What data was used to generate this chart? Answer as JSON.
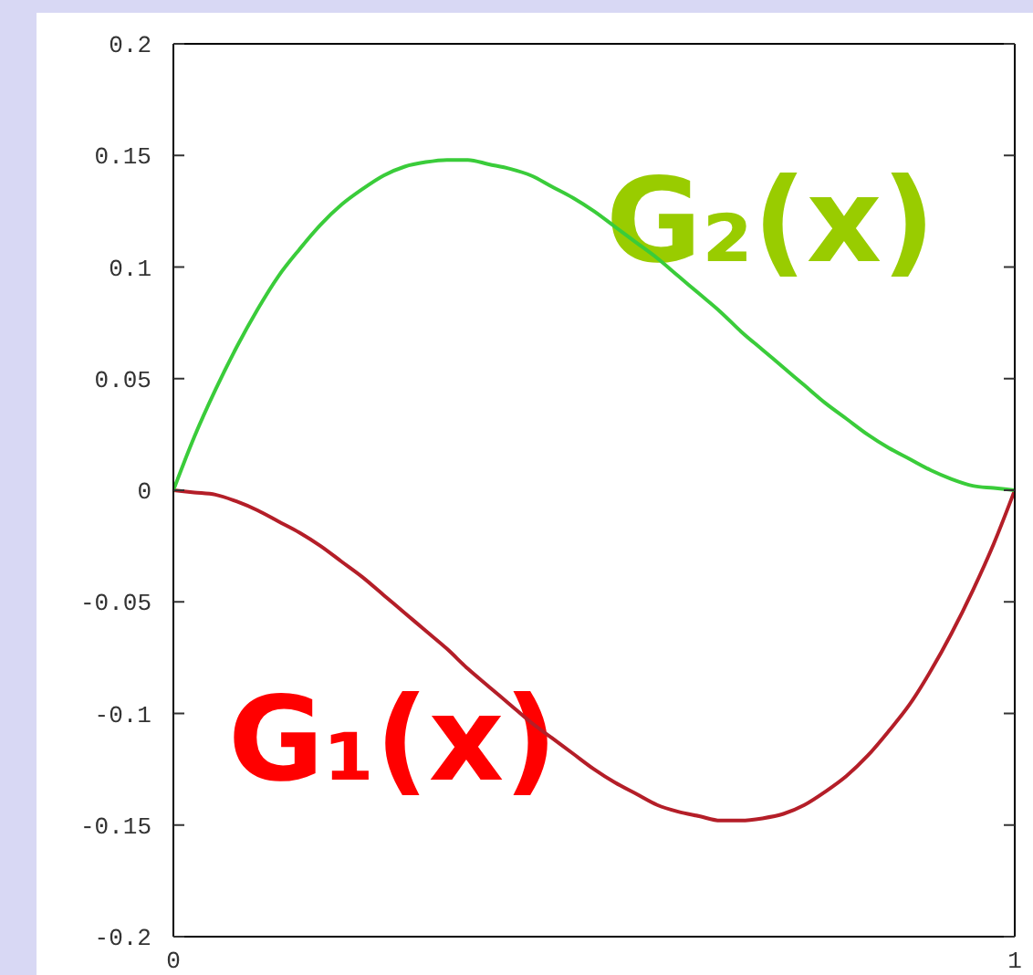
{
  "chart_data": {
    "type": "line",
    "x": [
      0,
      0.025,
      0.05,
      0.075,
      0.1,
      0.125,
      0.15,
      0.175,
      0.2,
      0.225,
      0.25,
      0.275,
      0.3,
      0.325,
      0.35,
      0.375,
      0.4,
      0.425,
      0.45,
      0.475,
      0.5,
      0.525,
      0.55,
      0.575,
      0.6,
      0.625,
      0.65,
      0.675,
      0.7,
      0.725,
      0.75,
      0.775,
      0.8,
      0.825,
      0.85,
      0.875,
      0.9,
      0.925,
      0.95,
      0.975,
      1
    ],
    "series": [
      {
        "name": "G₁(x)",
        "color": "#b41e28",
        "values": [
          0,
          -0.001,
          -0.002,
          -0.005,
          -0.009,
          -0.014,
          -0.019,
          -0.025,
          -0.032,
          -0.039,
          -0.047,
          -0.055,
          -0.063,
          -0.071,
          -0.08,
          -0.088,
          -0.096,
          -0.104,
          -0.111,
          -0.118,
          -0.125,
          -0.131,
          -0.136,
          -0.141,
          -0.144,
          -0.146,
          -0.148,
          -0.148,
          -0.147,
          -0.145,
          -0.141,
          -0.135,
          -0.128,
          -0.119,
          -0.108,
          -0.096,
          -0.081,
          -0.064,
          -0.045,
          -0.024,
          0
        ]
      },
      {
        "name": "G₂(x)",
        "color": "#3acc3a",
        "values": [
          0,
          0.024,
          0.045,
          0.064,
          0.081,
          0.096,
          0.108,
          0.119,
          0.128,
          0.135,
          0.141,
          0.145,
          0.147,
          0.148,
          0.148,
          0.146,
          0.144,
          0.141,
          0.136,
          0.131,
          0.125,
          0.118,
          0.111,
          0.104,
          0.096,
          0.088,
          0.08,
          0.071,
          0.063,
          0.055,
          0.047,
          0.039,
          0.032,
          0.025,
          0.019,
          0.014,
          0.009,
          0.005,
          0.002,
          0.001,
          0
        ]
      }
    ],
    "xlim": [
      0,
      1
    ],
    "xticks": [
      0,
      1
    ],
    "ylim": [
      -0.2,
      0.2
    ],
    "yticks": [
      -0.2,
      -0.15,
      -0.1,
      -0.05,
      0,
      0.05,
      0.1,
      0.15,
      0.2
    ],
    "marker": "none",
    "line_style": "solid"
  }
}
